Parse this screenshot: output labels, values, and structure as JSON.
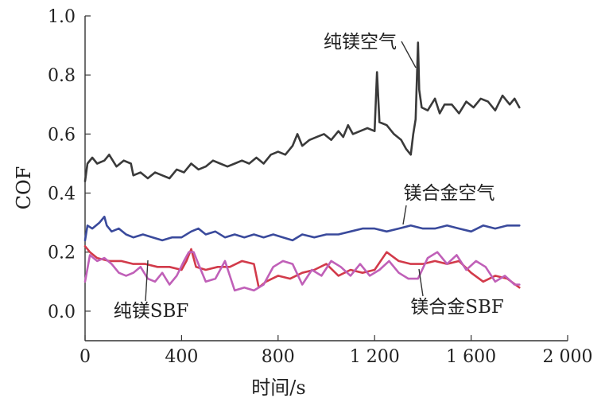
{
  "chart_data": {
    "type": "line",
    "title": "",
    "xlabel": "时间/s",
    "ylabel": "COF",
    "xlim": [
      0,
      2000
    ],
    "ylim": [
      -0.1,
      1.0
    ],
    "x_ticks": [
      {
        "value": 0,
        "label": "0"
      },
      {
        "value": 400,
        "label": "400"
      },
      {
        "value": 800,
        "label": "800"
      },
      {
        "value": 1200,
        "label": "1 200"
      },
      {
        "value": 1600,
        "label": "1 600"
      },
      {
        "value": 2000,
        "label": "2 000"
      }
    ],
    "y_ticks": [
      {
        "value": 0.0,
        "label": "0.0"
      },
      {
        "value": 0.2,
        "label": "0.2"
      },
      {
        "value": 0.4,
        "label": "0.4"
      },
      {
        "value": 0.6,
        "label": "0.6"
      },
      {
        "value": 0.8,
        "label": "0.8"
      },
      {
        "value": 1.0,
        "label": "1.0"
      }
    ],
    "grid": false,
    "legend": "none",
    "series": [
      {
        "name": "纯镁空气",
        "color": "#3a3a3a",
        "x": [
          0,
          10,
          30,
          50,
          80,
          100,
          130,
          160,
          190,
          200,
          230,
          260,
          290,
          320,
          350,
          380,
          410,
          440,
          470,
          500,
          530,
          560,
          590,
          620,
          650,
          680,
          710,
          740,
          770,
          800,
          830,
          860,
          880,
          900,
          930,
          960,
          990,
          1020,
          1050,
          1070,
          1090,
          1110,
          1140,
          1170,
          1200,
          1210,
          1220,
          1250,
          1280,
          1310,
          1330,
          1350,
          1360,
          1370,
          1380,
          1385,
          1395,
          1420,
          1450,
          1470,
          1490,
          1520,
          1550,
          1580,
          1610,
          1640,
          1670,
          1700,
          1730,
          1760,
          1780,
          1800
        ],
        "values": [
          0.44,
          0.5,
          0.52,
          0.5,
          0.51,
          0.53,
          0.49,
          0.51,
          0.5,
          0.46,
          0.47,
          0.45,
          0.47,
          0.46,
          0.45,
          0.48,
          0.47,
          0.5,
          0.48,
          0.49,
          0.51,
          0.5,
          0.49,
          0.5,
          0.51,
          0.5,
          0.52,
          0.5,
          0.53,
          0.54,
          0.53,
          0.56,
          0.6,
          0.56,
          0.58,
          0.59,
          0.6,
          0.58,
          0.61,
          0.59,
          0.63,
          0.6,
          0.61,
          0.62,
          0.61,
          0.81,
          0.64,
          0.63,
          0.6,
          0.58,
          0.55,
          0.53,
          0.6,
          0.65,
          0.91,
          0.75,
          0.69,
          0.68,
          0.72,
          0.67,
          0.7,
          0.7,
          0.67,
          0.71,
          0.69,
          0.72,
          0.71,
          0.68,
          0.73,
          0.7,
          0.72,
          0.69
        ]
      },
      {
        "name": "镁合金空气",
        "color": "#3a4a9c",
        "x": [
          0,
          10,
          30,
          60,
          80,
          90,
          110,
          140,
          170,
          200,
          240,
          280,
          320,
          360,
          400,
          440,
          470,
          500,
          540,
          580,
          620,
          660,
          700,
          740,
          780,
          820,
          860,
          900,
          950,
          1000,
          1050,
          1100,
          1150,
          1200,
          1250,
          1300,
          1350,
          1400,
          1450,
          1500,
          1550,
          1600,
          1650,
          1700,
          1750,
          1800
        ],
        "values": [
          0.24,
          0.29,
          0.28,
          0.3,
          0.32,
          0.29,
          0.27,
          0.28,
          0.26,
          0.25,
          0.26,
          0.25,
          0.24,
          0.25,
          0.25,
          0.27,
          0.28,
          0.26,
          0.27,
          0.25,
          0.26,
          0.25,
          0.26,
          0.25,
          0.26,
          0.25,
          0.24,
          0.26,
          0.25,
          0.26,
          0.26,
          0.27,
          0.28,
          0.28,
          0.27,
          0.28,
          0.29,
          0.28,
          0.28,
          0.29,
          0.28,
          0.27,
          0.29,
          0.28,
          0.29,
          0.29
        ]
      },
      {
        "name": "纯镁SBF",
        "color": "#d23a4a",
        "x": [
          0,
          20,
          50,
          100,
          150,
          200,
          250,
          300,
          350,
          400,
          420,
          440,
          460,
          500,
          550,
          600,
          650,
          700,
          720,
          750,
          800,
          850,
          900,
          950,
          1000,
          1050,
          1100,
          1150,
          1200,
          1250,
          1300,
          1350,
          1400,
          1450,
          1500,
          1550,
          1600,
          1650,
          1700,
          1750,
          1800
        ],
        "values": [
          0.22,
          0.2,
          0.18,
          0.17,
          0.17,
          0.16,
          0.16,
          0.15,
          0.15,
          0.14,
          0.17,
          0.21,
          0.15,
          0.14,
          0.15,
          0.15,
          0.17,
          0.16,
          0.08,
          0.1,
          0.12,
          0.11,
          0.13,
          0.14,
          0.16,
          0.12,
          0.14,
          0.13,
          0.14,
          0.2,
          0.17,
          0.16,
          0.16,
          0.17,
          0.16,
          0.17,
          0.13,
          0.1,
          0.12,
          0.11,
          0.08
        ]
      },
      {
        "name": "镁合金SBF",
        "color": "#c060b8",
        "x": [
          0,
          20,
          50,
          80,
          110,
          140,
          170,
          200,
          230,
          260,
          290,
          320,
          350,
          380,
          410,
          430,
          450,
          470,
          500,
          540,
          580,
          620,
          660,
          700,
          740,
          780,
          820,
          860,
          900,
          940,
          980,
          1020,
          1060,
          1100,
          1140,
          1180,
          1220,
          1260,
          1300,
          1340,
          1380,
          1420,
          1460,
          1500,
          1540,
          1580,
          1620,
          1660,
          1700,
          1740,
          1780,
          1800
        ],
        "values": [
          0.1,
          0.19,
          0.17,
          0.18,
          0.16,
          0.13,
          0.12,
          0.13,
          0.15,
          0.11,
          0.1,
          0.13,
          0.09,
          0.12,
          0.17,
          0.2,
          0.2,
          0.16,
          0.1,
          0.11,
          0.17,
          0.07,
          0.08,
          0.07,
          0.09,
          0.15,
          0.17,
          0.16,
          0.09,
          0.14,
          0.12,
          0.17,
          0.15,
          0.12,
          0.16,
          0.12,
          0.14,
          0.17,
          0.13,
          0.11,
          0.11,
          0.18,
          0.2,
          0.16,
          0.19,
          0.14,
          0.17,
          0.15,
          0.1,
          0.12,
          0.09,
          0.09
        ]
      }
    ],
    "annotations": [
      {
        "text": "纯镁空气",
        "series": 0,
        "at_x": 1380
      },
      {
        "text": "镁合金空气",
        "series": 1,
        "at_x": 1300
      },
      {
        "text": "纯镁SBF",
        "series": 2,
        "at_x": 255
      },
      {
        "text": "镁合金SBF",
        "series": 3,
        "at_x": 1400
      }
    ]
  }
}
